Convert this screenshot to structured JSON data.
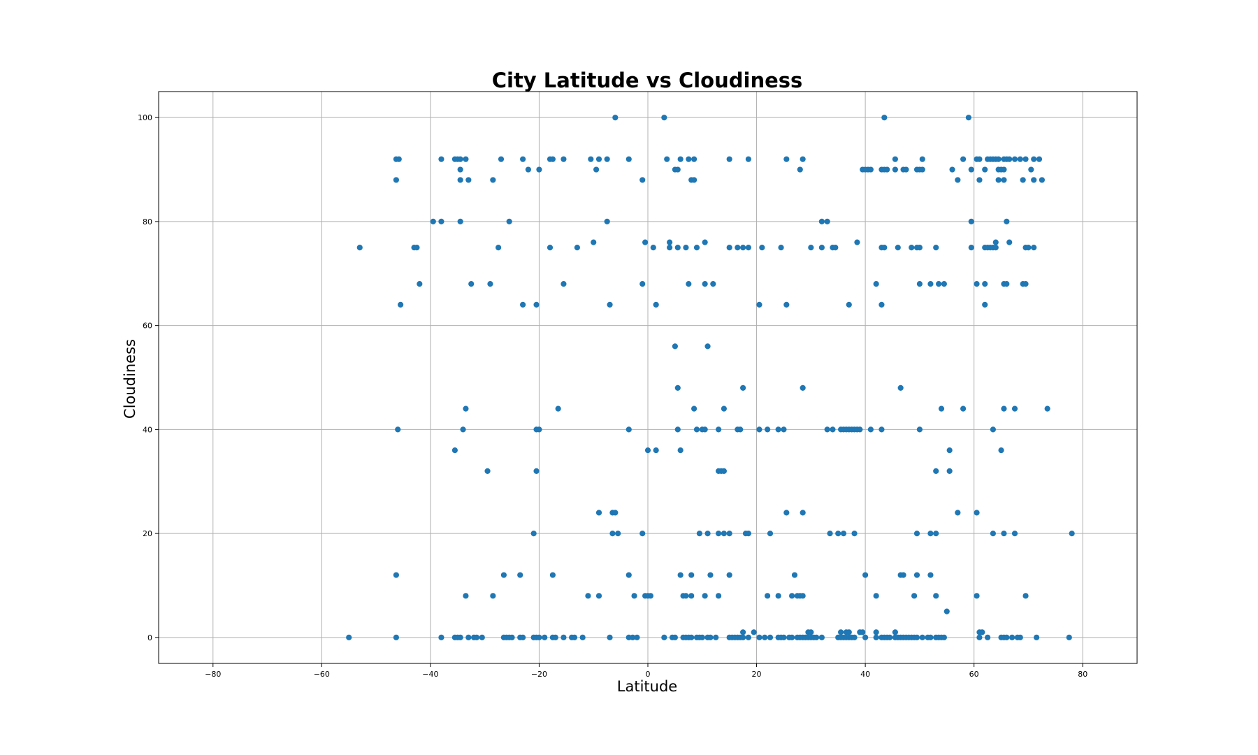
{
  "chart_data": {
    "type": "scatter",
    "title": "City Latitude vs Cloudiness",
    "xlabel": "Latitude",
    "ylabel": "Cloudiness",
    "xlim": [
      -90,
      90
    ],
    "ylim": [
      -5,
      105
    ],
    "xticks": [
      -80,
      -60,
      -40,
      -20,
      0,
      20,
      40,
      60,
      80
    ],
    "yticks": [
      0,
      20,
      40,
      60,
      80,
      100
    ],
    "grid": true,
    "colors": {
      "point": "#1f77b4",
      "grid": "#b0b0b0"
    },
    "points": [
      [
        -55,
        0
      ],
      [
        -46.3,
        0
      ],
      [
        -38,
        0
      ],
      [
        -35.5,
        0
      ],
      [
        -35,
        0
      ],
      [
        -34.5,
        0
      ],
      [
        -33,
        0
      ],
      [
        -32,
        0
      ],
      [
        -31.5,
        0
      ],
      [
        -30.5,
        0
      ],
      [
        -26.5,
        0
      ],
      [
        -26,
        0
      ],
      [
        -25.5,
        0
      ],
      [
        -25,
        0
      ],
      [
        -23.5,
        0
      ],
      [
        -23,
        0
      ],
      [
        -21,
        0
      ],
      [
        -20.5,
        0
      ],
      [
        -20,
        0
      ],
      [
        -19,
        0
      ],
      [
        -17.5,
        0
      ],
      [
        -17,
        0
      ],
      [
        -15.5,
        0
      ],
      [
        -14,
        0
      ],
      [
        -13.5,
        0
      ],
      [
        -12,
        0
      ],
      [
        -7,
        0
      ],
      [
        -3.5,
        0
      ],
      [
        -2.8,
        0
      ],
      [
        -2,
        0
      ],
      [
        3,
        0
      ],
      [
        4.5,
        0
      ],
      [
        5,
        0
      ],
      [
        6.5,
        0
      ],
      [
        7,
        0
      ],
      [
        7.5,
        0
      ],
      [
        8,
        0
      ],
      [
        9,
        0
      ],
      [
        9.5,
        0
      ],
      [
        10,
        0
      ],
      [
        11,
        0
      ],
      [
        11.5,
        0
      ],
      [
        12.5,
        0
      ],
      [
        15,
        0
      ],
      [
        15.5,
        0
      ],
      [
        16,
        0
      ],
      [
        16.5,
        0
      ],
      [
        17,
        0
      ],
      [
        17.5,
        0
      ],
      [
        18.5,
        0
      ],
      [
        20.5,
        0
      ],
      [
        21.5,
        0
      ],
      [
        22.5,
        0
      ],
      [
        24,
        0
      ],
      [
        24.5,
        0
      ],
      [
        25,
        0
      ],
      [
        26,
        0
      ],
      [
        26.5,
        0
      ],
      [
        27.5,
        0
      ],
      [
        28,
        0
      ],
      [
        28.5,
        0
      ],
      [
        29,
        0
      ],
      [
        29.5,
        0
      ],
      [
        30,
        0
      ],
      [
        30.5,
        0
      ],
      [
        31,
        0
      ],
      [
        32,
        0
      ],
      [
        35,
        0
      ],
      [
        35.5,
        0
      ],
      [
        36,
        0
      ],
      [
        36.5,
        0
      ],
      [
        37,
        0
      ],
      [
        37.5,
        0
      ],
      [
        38,
        0
      ],
      [
        40,
        0
      ],
      [
        42,
        0
      ],
      [
        43,
        0
      ],
      [
        43.5,
        0
      ],
      [
        44,
        0
      ],
      [
        44.5,
        0
      ],
      [
        45.5,
        0
      ],
      [
        46,
        0
      ],
      [
        46.5,
        0
      ],
      [
        47,
        0
      ],
      [
        47.5,
        0
      ],
      [
        48,
        0
      ],
      [
        48.5,
        0
      ],
      [
        49,
        0
      ],
      [
        49.5,
        0
      ],
      [
        50.5,
        0
      ],
      [
        51.5,
        0
      ],
      [
        52,
        0
      ],
      [
        53,
        0
      ],
      [
        53.5,
        0
      ],
      [
        54,
        0
      ],
      [
        54.5,
        0
      ],
      [
        61,
        0
      ],
      [
        62.5,
        0
      ],
      [
        65,
        0
      ],
      [
        65.5,
        0
      ],
      [
        66,
        0
      ],
      [
        67,
        0
      ],
      [
        68,
        0
      ],
      [
        68.5,
        0
      ],
      [
        71.5,
        0
      ],
      [
        77.5,
        0
      ],
      [
        17.5,
        1
      ],
      [
        19.5,
        1
      ],
      [
        29.5,
        1
      ],
      [
        30,
        1
      ],
      [
        35.5,
        1
      ],
      [
        36.5,
        1
      ],
      [
        37,
        1
      ],
      [
        39,
        1
      ],
      [
        39.5,
        1
      ],
      [
        42,
        1
      ],
      [
        45.5,
        1
      ],
      [
        61,
        1
      ],
      [
        61.5,
        1
      ],
      [
        55,
        5
      ],
      [
        -33.5,
        8
      ],
      [
        -28.5,
        8
      ],
      [
        -11,
        8
      ],
      [
        -9,
        8
      ],
      [
        -2.5,
        8
      ],
      [
        -0.5,
        8
      ],
      [
        0,
        8
      ],
      [
        0.5,
        8
      ],
      [
        6.5,
        8
      ],
      [
        7,
        8
      ],
      [
        8,
        8
      ],
      [
        10.5,
        8
      ],
      [
        13,
        8
      ],
      [
        22,
        8
      ],
      [
        24,
        8
      ],
      [
        26.5,
        8
      ],
      [
        27.5,
        8
      ],
      [
        28,
        8
      ],
      [
        28.5,
        8
      ],
      [
        42,
        8
      ],
      [
        49,
        8
      ],
      [
        53,
        8
      ],
      [
        60.5,
        8
      ],
      [
        69.5,
        8
      ],
      [
        -46.3,
        12
      ],
      [
        -26.5,
        12
      ],
      [
        -23.5,
        12
      ],
      [
        -17.5,
        12
      ],
      [
        -3.5,
        12
      ],
      [
        6,
        12
      ],
      [
        8,
        12
      ],
      [
        11.5,
        12
      ],
      [
        15,
        12
      ],
      [
        27,
        12
      ],
      [
        40,
        12
      ],
      [
        46.5,
        12
      ],
      [
        47,
        12
      ],
      [
        49.5,
        12
      ],
      [
        52,
        12
      ],
      [
        -9,
        24
      ],
      [
        -6.5,
        24
      ],
      [
        -6,
        24
      ],
      [
        25.5,
        24
      ],
      [
        28.5,
        24
      ],
      [
        57,
        24
      ],
      [
        60.5,
        24
      ],
      [
        -21,
        20
      ],
      [
        -6.5,
        20
      ],
      [
        -5.5,
        20
      ],
      [
        -1,
        20
      ],
      [
        9.5,
        20
      ],
      [
        11,
        20
      ],
      [
        13,
        20
      ],
      [
        14,
        20
      ],
      [
        15,
        20
      ],
      [
        18,
        20
      ],
      [
        18.5,
        20
      ],
      [
        22.5,
        20
      ],
      [
        33.5,
        20
      ],
      [
        35,
        20
      ],
      [
        36,
        20
      ],
      [
        38,
        20
      ],
      [
        49.5,
        20
      ],
      [
        52,
        20
      ],
      [
        53,
        20
      ],
      [
        63.5,
        20
      ],
      [
        65.5,
        20
      ],
      [
        67.5,
        20
      ],
      [
        78,
        20
      ],
      [
        -29.5,
        32
      ],
      [
        -20.5,
        32
      ],
      [
        13,
        32
      ],
      [
        13.5,
        32
      ],
      [
        14,
        32
      ],
      [
        53,
        32
      ],
      [
        55.5,
        32
      ],
      [
        -35.5,
        36
      ],
      [
        0,
        36
      ],
      [
        1.5,
        36
      ],
      [
        6,
        36
      ],
      [
        55.5,
        36
      ],
      [
        65,
        36
      ],
      [
        -46,
        40
      ],
      [
        -34,
        40
      ],
      [
        -20.5,
        40
      ],
      [
        -20,
        40
      ],
      [
        -3.5,
        40
      ],
      [
        5.5,
        40
      ],
      [
        9,
        40
      ],
      [
        10,
        40
      ],
      [
        10.5,
        40
      ],
      [
        13,
        40
      ],
      [
        16.5,
        40
      ],
      [
        17,
        40
      ],
      [
        20.5,
        40
      ],
      [
        22,
        40
      ],
      [
        24,
        40
      ],
      [
        25,
        40
      ],
      [
        33,
        40
      ],
      [
        34,
        40
      ],
      [
        35.5,
        40
      ],
      [
        36,
        40
      ],
      [
        36.5,
        40
      ],
      [
        37,
        40
      ],
      [
        37.5,
        40
      ],
      [
        38,
        40
      ],
      [
        38.5,
        40
      ],
      [
        39,
        40
      ],
      [
        41,
        40
      ],
      [
        43,
        40
      ],
      [
        50,
        40
      ],
      [
        63.5,
        40
      ],
      [
        -33.5,
        44
      ],
      [
        -16.5,
        44
      ],
      [
        8.5,
        44
      ],
      [
        14,
        44
      ],
      [
        54,
        44
      ],
      [
        58,
        44
      ],
      [
        65.5,
        44
      ],
      [
        67.5,
        44
      ],
      [
        73.5,
        44
      ],
      [
        5.5,
        48
      ],
      [
        17.5,
        48
      ],
      [
        28.5,
        48
      ],
      [
        46.5,
        48
      ],
      [
        5,
        56
      ],
      [
        11,
        56
      ],
      [
        -45.5,
        64
      ],
      [
        -23,
        64
      ],
      [
        -20.5,
        64
      ],
      [
        -7,
        64
      ],
      [
        1.5,
        64
      ],
      [
        20.5,
        64
      ],
      [
        25.5,
        64
      ],
      [
        37,
        64
      ],
      [
        43,
        64
      ],
      [
        62,
        64
      ],
      [
        -42,
        68
      ],
      [
        -32.5,
        68
      ],
      [
        -29,
        68
      ],
      [
        -15.5,
        68
      ],
      [
        -1,
        68
      ],
      [
        7.5,
        68
      ],
      [
        10.5,
        68
      ],
      [
        12,
        68
      ],
      [
        42,
        68
      ],
      [
        50,
        68
      ],
      [
        52,
        68
      ],
      [
        53.5,
        68
      ],
      [
        54.5,
        68
      ],
      [
        60.5,
        68
      ],
      [
        62,
        68
      ],
      [
        65.5,
        68
      ],
      [
        66,
        68
      ],
      [
        69,
        68
      ],
      [
        69.5,
        68
      ],
      [
        -53,
        75
      ],
      [
        -43,
        75
      ],
      [
        -42.5,
        75
      ],
      [
        -27.5,
        75
      ],
      [
        -18,
        75
      ],
      [
        -13,
        75
      ],
      [
        1,
        75
      ],
      [
        4,
        75
      ],
      [
        5.5,
        75
      ],
      [
        7,
        75
      ],
      [
        9,
        75
      ],
      [
        15,
        75
      ],
      [
        16.5,
        75
      ],
      [
        17.5,
        75
      ],
      [
        18.5,
        75
      ],
      [
        21,
        75
      ],
      [
        24.5,
        75
      ],
      [
        30,
        75
      ],
      [
        32,
        75
      ],
      [
        34,
        75
      ],
      [
        34.5,
        75
      ],
      [
        43,
        75
      ],
      [
        43.5,
        75
      ],
      [
        46,
        75
      ],
      [
        48.5,
        75
      ],
      [
        49.5,
        75
      ],
      [
        50,
        75
      ],
      [
        53,
        75
      ],
      [
        59.5,
        75
      ],
      [
        62,
        75
      ],
      [
        62.5,
        75
      ],
      [
        63,
        75
      ],
      [
        63.5,
        75
      ],
      [
        64,
        75
      ],
      [
        69.5,
        75
      ],
      [
        70,
        75
      ],
      [
        71,
        75
      ],
      [
        -10,
        76
      ],
      [
        -0.5,
        76
      ],
      [
        4,
        76
      ],
      [
        10.5,
        76
      ],
      [
        38.5,
        76
      ],
      [
        64,
        76
      ],
      [
        66.5,
        76
      ],
      [
        -39.5,
        80
      ],
      [
        -38,
        80
      ],
      [
        -34.5,
        80
      ],
      [
        -25.5,
        80
      ],
      [
        -7.5,
        80
      ],
      [
        32,
        80
      ],
      [
        33,
        80
      ],
      [
        59.5,
        80
      ],
      [
        66,
        80
      ],
      [
        -46.3,
        88
      ],
      [
        -34.5,
        88
      ],
      [
        -33,
        88
      ],
      [
        -28.5,
        88
      ],
      [
        -1,
        88
      ],
      [
        8,
        88
      ],
      [
        8.5,
        88
      ],
      [
        57,
        88
      ],
      [
        61,
        88
      ],
      [
        64.5,
        88
      ],
      [
        65.5,
        88
      ],
      [
        69,
        88
      ],
      [
        71,
        88
      ],
      [
        72.5,
        88
      ],
      [
        -34.5,
        90
      ],
      [
        -22,
        90
      ],
      [
        -20,
        90
      ],
      [
        -9.5,
        90
      ],
      [
        5,
        90
      ],
      [
        5.5,
        90
      ],
      [
        28,
        90
      ],
      [
        39.5,
        90
      ],
      [
        40,
        90
      ],
      [
        40.5,
        90
      ],
      [
        41,
        90
      ],
      [
        43,
        90
      ],
      [
        43.5,
        90
      ],
      [
        44,
        90
      ],
      [
        45.5,
        90
      ],
      [
        47,
        90
      ],
      [
        47.5,
        90
      ],
      [
        49.5,
        90
      ],
      [
        50,
        90
      ],
      [
        50.5,
        90
      ],
      [
        56,
        90
      ],
      [
        59.5,
        90
      ],
      [
        62,
        90
      ],
      [
        64.5,
        90
      ],
      [
        65,
        90
      ],
      [
        65.5,
        90
      ],
      [
        70.5,
        90
      ],
      [
        -46.3,
        92
      ],
      [
        -45.8,
        92
      ],
      [
        -38,
        92
      ],
      [
        -35.5,
        92
      ],
      [
        -35,
        92
      ],
      [
        -34.5,
        92
      ],
      [
        -33.5,
        92
      ],
      [
        -27,
        92
      ],
      [
        -23,
        92
      ],
      [
        -18,
        92
      ],
      [
        -17.5,
        92
      ],
      [
        -15.5,
        92
      ],
      [
        -10.5,
        92
      ],
      [
        -9,
        92
      ],
      [
        -7.5,
        92
      ],
      [
        -3.5,
        92
      ],
      [
        3.5,
        92
      ],
      [
        6,
        92
      ],
      [
        7.5,
        92
      ],
      [
        8.5,
        92
      ],
      [
        15,
        92
      ],
      [
        18.5,
        92
      ],
      [
        25.5,
        92
      ],
      [
        28.5,
        92
      ],
      [
        45.5,
        92
      ],
      [
        50.5,
        92
      ],
      [
        58,
        92
      ],
      [
        60.5,
        92
      ],
      [
        61,
        92
      ],
      [
        62.5,
        92
      ],
      [
        63,
        92
      ],
      [
        63.5,
        92
      ],
      [
        64,
        92
      ],
      [
        64.5,
        92
      ],
      [
        65.5,
        92
      ],
      [
        66,
        92
      ],
      [
        66.5,
        92
      ],
      [
        67.5,
        92
      ],
      [
        68.5,
        92
      ],
      [
        69.5,
        92
      ],
      [
        71,
        92
      ],
      [
        72,
        92
      ],
      [
        -6,
        100
      ],
      [
        3,
        100
      ],
      [
        43.5,
        100
      ],
      [
        59,
        100
      ]
    ]
  }
}
